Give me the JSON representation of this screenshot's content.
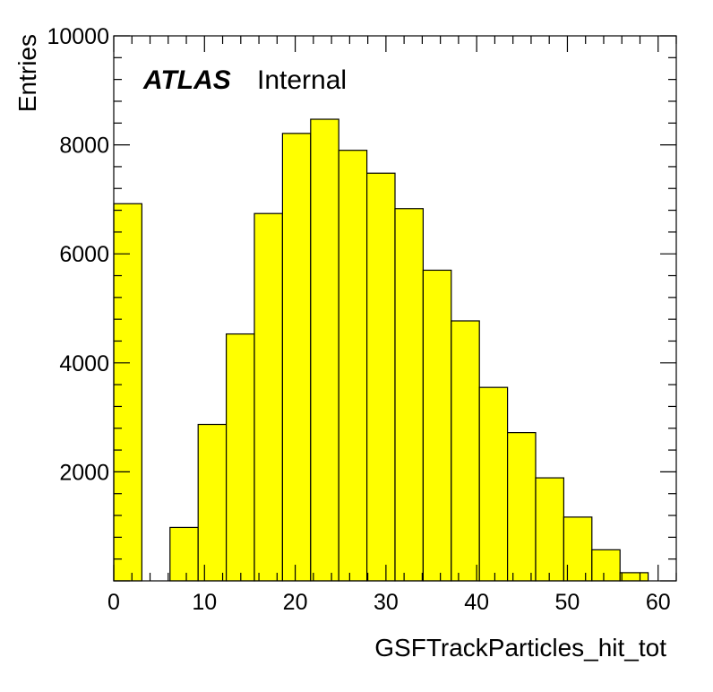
{
  "chart_data": {
    "type": "bar",
    "style": "histogram",
    "xlabel": "GSFTrackParticles_hit_tot",
    "ylabel": "Entries",
    "xlim": [
      0,
      62
    ],
    "ylim": [
      0,
      10000
    ],
    "xticks": [
      0,
      10,
      20,
      30,
      40,
      50,
      60
    ],
    "yticks": [
      2000,
      4000,
      6000,
      8000,
      10000
    ],
    "bin_width": 3.1,
    "bin_starts": [
      0,
      3.1,
      6.2,
      9.3,
      12.4,
      15.5,
      18.6,
      21.7,
      24.8,
      27.9,
      31.0,
      34.1,
      37.2,
      40.3,
      43.4,
      46.5,
      49.6,
      52.7,
      55.8,
      58.9
    ],
    "values": [
      6920,
      0,
      980,
      2870,
      4530,
      6740,
      8210,
      8470,
      7900,
      7480,
      6830,
      5700,
      4770,
      3550,
      2720,
      1890,
      1170,
      570,
      150,
      0
    ],
    "fill_color": "#ffff00",
    "line_color": "#000000",
    "grid": false,
    "legend": "none"
  },
  "annotation": {
    "experiment": "ATLAS",
    "status": "Internal"
  }
}
